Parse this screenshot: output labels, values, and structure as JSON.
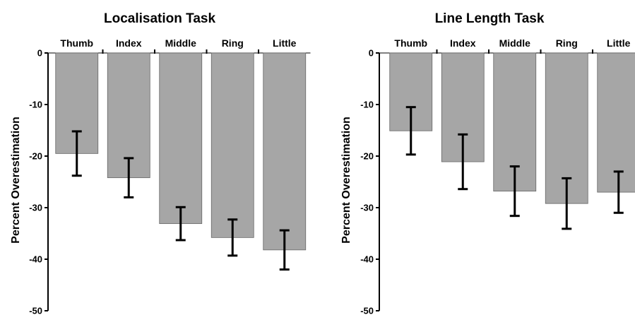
{
  "chart_data": [
    {
      "type": "bar",
      "title": "Localisation Task",
      "ylabel": "Percent Overestimation",
      "xlabel": "",
      "categories": [
        "Thumb",
        "Index",
        "Middle",
        "Ring",
        "Little"
      ],
      "values": [
        -19.5,
        -24.2,
        -33.1,
        -35.8,
        -38.2
      ],
      "errors": [
        4.3,
        3.8,
        3.2,
        3.5,
        3.8
      ],
      "ylim": [
        -50,
        0
      ],
      "yticks": [
        "0",
        "-10",
        "-20",
        "-30",
        "-40",
        "-50"
      ],
      "bar_color": "#a6a6a6",
      "error_color": "#000000",
      "grid": false
    },
    {
      "type": "bar",
      "title": "Line Length Task",
      "ylabel": "Percent Overestimation",
      "xlabel": "",
      "categories": [
        "Thumb",
        "Index",
        "Middle",
        "Ring",
        "Little"
      ],
      "values": [
        -15.1,
        -21.1,
        -26.8,
        -29.2,
        -27.0
      ],
      "errors": [
        4.6,
        5.3,
        4.8,
        4.9,
        4.0
      ],
      "ylim": [
        -50,
        0
      ],
      "yticks": [
        "0",
        "-10",
        "-20",
        "-30",
        "-40",
        "-50"
      ],
      "bar_color": "#a6a6a6",
      "error_color": "#000000",
      "grid": false
    }
  ]
}
